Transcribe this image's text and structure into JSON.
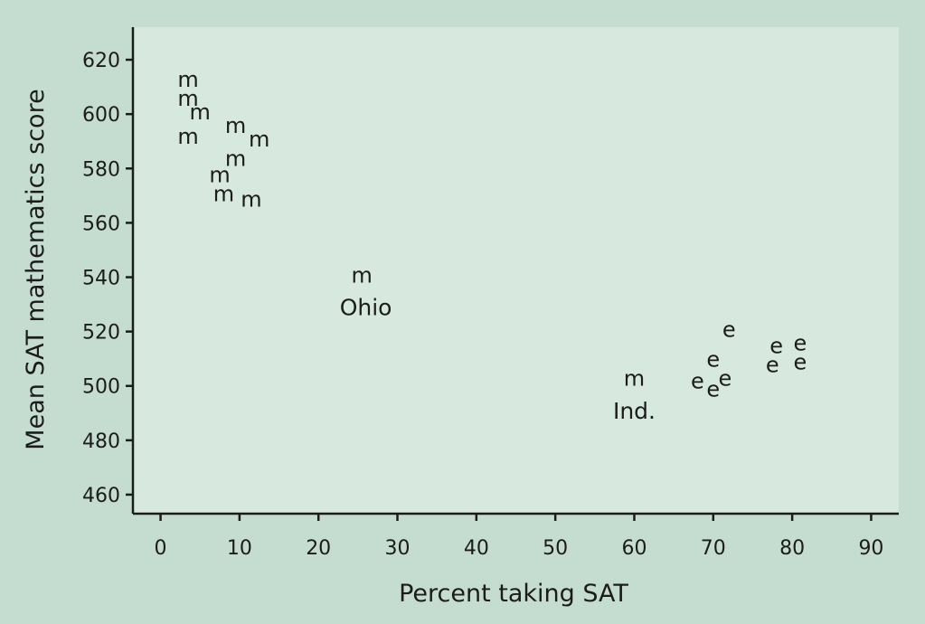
{
  "chart_data": {
    "type": "scatter",
    "xlabel": "Percent taking SAT",
    "ylabel": "Mean SAT mathematics score",
    "xlim": [
      -3.5,
      93.5
    ],
    "ylim": [
      453,
      632
    ],
    "xticks": [
      0,
      10,
      20,
      30,
      40,
      50,
      60,
      70,
      80,
      90
    ],
    "yticks": [
      460,
      480,
      500,
      520,
      540,
      560,
      580,
      600,
      620
    ],
    "grid": false,
    "series": [
      {
        "marker": "m",
        "points": [
          {
            "x": 3.5,
            "y": 612
          },
          {
            "x": 3.5,
            "y": 605
          },
          {
            "x": 5,
            "y": 600
          },
          {
            "x": 3.5,
            "y": 591
          },
          {
            "x": 9.5,
            "y": 595
          },
          {
            "x": 12.5,
            "y": 590
          },
          {
            "x": 9.5,
            "y": 583
          },
          {
            "x": 7.5,
            "y": 577
          },
          {
            "x": 8,
            "y": 570
          },
          {
            "x": 11.5,
            "y": 568
          },
          {
            "x": 25.5,
            "y": 540
          },
          {
            "x": 60,
            "y": 502
          }
        ]
      },
      {
        "marker": "e",
        "points": [
          {
            "x": 72,
            "y": 520
          },
          {
            "x": 70,
            "y": 509
          },
          {
            "x": 68,
            "y": 501
          },
          {
            "x": 70,
            "y": 498
          },
          {
            "x": 71.5,
            "y": 502
          },
          {
            "x": 77.5,
            "y": 507
          },
          {
            "x": 78,
            "y": 514
          },
          {
            "x": 81,
            "y": 515
          },
          {
            "x": 81,
            "y": 508
          }
        ]
      }
    ],
    "annotations": [
      {
        "text": "Ohio",
        "x": 26,
        "y": 529
      },
      {
        "text": "Ind.",
        "x": 60,
        "y": 491
      }
    ]
  }
}
